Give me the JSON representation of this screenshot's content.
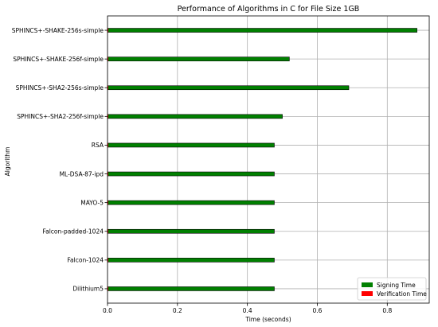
{
  "chart_data": {
    "type": "bar",
    "orientation": "horizontal",
    "title": "Performance of Algorithms in C for File Size 1GB",
    "xlabel": "Time (seconds)",
    "ylabel": "Algorithm",
    "xlim": [
      0,
      0.92
    ],
    "xticks": [
      0.0,
      0.2,
      0.4,
      0.6,
      0.8
    ],
    "xtick_labels": [
      "0.0",
      "0.2",
      "0.4",
      "0.6",
      "0.8"
    ],
    "grid": true,
    "legend_position": "bottom-right",
    "categories": [
      "SPHINCS+-SHAKE-256s-simple",
      "SPHINCS+-SHAKE-256f-simple",
      "SPHINCS+-SHA2-256s-simple",
      "SPHINCS+-SHA2-256f-simple",
      "RSA",
      "ML-DSA-87-ipd",
      "MAYO-5",
      "Falcon-padded-1024",
      "Falcon-1024",
      "Dilithium5"
    ],
    "series": [
      {
        "name": "Signing Time",
        "color": "#008000",
        "values": [
          0.885,
          0.52,
          0.69,
          0.5,
          0.477,
          0.477,
          0.477,
          0.477,
          0.477,
          0.477
        ]
      },
      {
        "name": "Verification Time",
        "color": "#ff0000",
        "values": [
          0.0006,
          0.0003,
          0.0005,
          0.0003,
          0.0002,
          0.0002,
          0.0002,
          0.0002,
          0.0002,
          0.0002
        ]
      }
    ]
  }
}
